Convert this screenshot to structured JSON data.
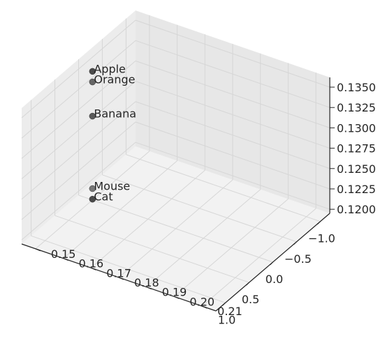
{
  "chart_data": {
    "type": "scatter3d",
    "title": "",
    "xlabel": "",
    "ylabel": "",
    "zlabel": "",
    "xlim": [
      -1.2,
      1.2
    ],
    "ylim": [
      0.145,
      0.215
    ],
    "zlim": [
      0.1195,
      0.1362
    ],
    "x_ticks": [
      "−1.0",
      "−0.5",
      "0.0",
      "0.5",
      "1.0"
    ],
    "y_ticks": [
      "0.15",
      "0.16",
      "0.17",
      "0.18",
      "0.19",
      "0.20",
      "0.21"
    ],
    "z_ticks": [
      "0.1200",
      "0.1225",
      "0.1250",
      "0.1275",
      "0.1300",
      "0.1325",
      "0.1350"
    ],
    "points": [
      {
        "label": "Apple",
        "x": 0.0,
        "y": 0.15,
        "z": 0.1353,
        "color": "#4a4a4a"
      },
      {
        "label": "Orange",
        "x": 0.0,
        "y": 0.15,
        "z": 0.134,
        "color": "#666666"
      },
      {
        "label": "Banana",
        "x": 0.0,
        "y": 0.15,
        "z": 0.1298,
        "color": "#5a5a5a"
      },
      {
        "label": "Mouse",
        "x": 0.0,
        "y": 0.15,
        "z": 0.1209,
        "color": "#777777"
      },
      {
        "label": "Cat",
        "x": 0.0,
        "y": 0.15,
        "z": 0.1196,
        "color": "#4a4a4a"
      }
    ],
    "grid": true,
    "pane_color": "#f2f2f2",
    "grid_color": "#d6d6d6"
  }
}
